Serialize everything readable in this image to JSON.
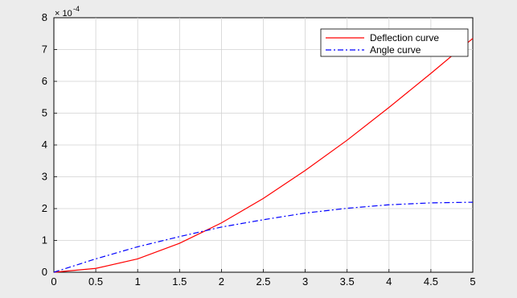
{
  "chart_data": {
    "type": "line",
    "title": "",
    "xlabel": "",
    "ylabel": "",
    "exponent_label": "× 10",
    "exponent_value": "-4",
    "xlim": [
      0,
      5
    ],
    "ylim": [
      0,
      8
    ],
    "grid": true,
    "legend_position": "top-right",
    "x_ticks": [
      "0",
      "0.5",
      "1",
      "1.5",
      "2",
      "2.5",
      "3",
      "3.5",
      "4",
      "4.5",
      "5"
    ],
    "y_ticks": [
      "0",
      "1",
      "2",
      "3",
      "4",
      "5",
      "6",
      "7",
      "8"
    ],
    "x": [
      0,
      0.5,
      1,
      1.5,
      2,
      2.5,
      3,
      3.5,
      4,
      4.5,
      5
    ],
    "series": [
      {
        "name": "Deflection curve",
        "color": "#ff0000",
        "style": "solid",
        "values": [
          0,
          0.12,
          0.42,
          0.91,
          1.55,
          2.32,
          3.2,
          4.15,
          5.18,
          6.25,
          7.35
        ]
      },
      {
        "name": "Angle curve",
        "color": "#0000ff",
        "style": "dash-dot",
        "values": [
          0,
          0.42,
          0.8,
          1.12,
          1.42,
          1.65,
          1.86,
          2.01,
          2.12,
          2.18,
          2.2
        ]
      }
    ]
  }
}
